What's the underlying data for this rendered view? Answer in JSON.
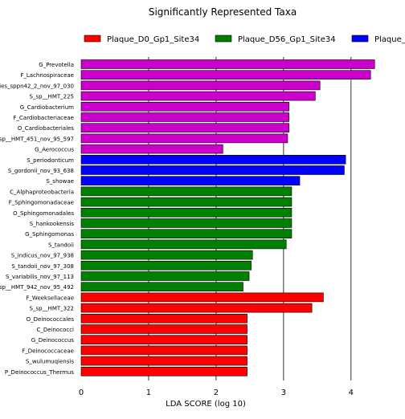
{
  "chart_data": {
    "type": "bar",
    "orientation": "horizontal",
    "title": "Significantly Represented Taxa",
    "xlabel": "LDA SCORE (log 10)",
    "ylabel": "",
    "xlim": [
      0,
      4.8
    ],
    "xticks": [
      "0",
      "1",
      "2",
      "3",
      "4"
    ],
    "grid": "vertical",
    "legend_position": "top",
    "legend": [
      {
        "name": "Plaque_D0_Gp1_Site34",
        "color": "#ff0000"
      },
      {
        "name": "Plaque_D56_Gp1_Site34",
        "color": "#008000"
      },
      {
        "name": "Plaque_",
        "color": "#0000ff"
      }
    ],
    "bars": [
      {
        "label": "G_Prevotella",
        "value": 4.35,
        "color": "#cc00cc"
      },
      {
        "label": "F_Lachnospiraceae",
        "value": 4.29,
        "color": "#cc00cc"
      },
      {
        "label": "ies_sppn42_2_nov_97_030",
        "value": 3.54,
        "color": "#cc00cc"
      },
      {
        "label": "S_sp__HMT_225",
        "value": 3.47,
        "color": "#cc00cc"
      },
      {
        "label": "G_Cardiobacterium",
        "value": 3.08,
        "color": "#cc00cc"
      },
      {
        "label": "F_Cardiobacteriaceae",
        "value": 3.08,
        "color": "#cc00cc"
      },
      {
        "label": "O_Cardiobacteriales",
        "value": 3.08,
        "color": "#cc00cc"
      },
      {
        "label": "sp__HMT_451_nov_95_597",
        "value": 3.06,
        "color": "#cc00cc"
      },
      {
        "label": "G_Aerococcus",
        "value": 2.1,
        "color": "#cc00cc"
      },
      {
        "label": "S_periodonticum",
        "value": 3.92,
        "color": "#0000ff"
      },
      {
        "label": "S_gordonii_nov_93_638",
        "value": 3.9,
        "color": "#0000ff"
      },
      {
        "label": "S_showae",
        "value": 3.24,
        "color": "#0000ff"
      },
      {
        "label": "C_Alphaproteobacteria",
        "value": 3.12,
        "color": "#008000"
      },
      {
        "label": "F_Sphingomonadaceae",
        "value": 3.12,
        "color": "#008000"
      },
      {
        "label": "O_Sphingomonadales",
        "value": 3.12,
        "color": "#008000"
      },
      {
        "label": "S_hankookensis",
        "value": 3.12,
        "color": "#008000"
      },
      {
        "label": "G_Sphingomonas",
        "value": 3.12,
        "color": "#008000"
      },
      {
        "label": "S_tandoii",
        "value": 3.04,
        "color": "#008000"
      },
      {
        "label": "S_indicus_nov_97_938",
        "value": 2.54,
        "color": "#008000"
      },
      {
        "label": "S_tandoii_nov_97_308",
        "value": 2.52,
        "color": "#008000"
      },
      {
        "label": "S_variabilis_nov_97_113",
        "value": 2.49,
        "color": "#008000"
      },
      {
        "label": "sp__HMT_942_nov_95_492",
        "value": 2.4,
        "color": "#008000"
      },
      {
        "label": "F_Weeksellaceae",
        "value": 3.59,
        "color": "#ff0000"
      },
      {
        "label": "S_sp__HMT_322",
        "value": 3.42,
        "color": "#ff0000"
      },
      {
        "label": "O_Deinococcales",
        "value": 2.46,
        "color": "#ff0000"
      },
      {
        "label": "C_Deinococci",
        "value": 2.46,
        "color": "#ff0000"
      },
      {
        "label": "G_Deinococcus",
        "value": 2.46,
        "color": "#ff0000"
      },
      {
        "label": "F_Deinococcaceae",
        "value": 2.46,
        "color": "#ff0000"
      },
      {
        "label": "S_wulumuqiensis",
        "value": 2.46,
        "color": "#ff0000"
      },
      {
        "label": "P_Deinococcus_Thermus",
        "value": 2.46,
        "color": "#ff0000"
      }
    ]
  }
}
